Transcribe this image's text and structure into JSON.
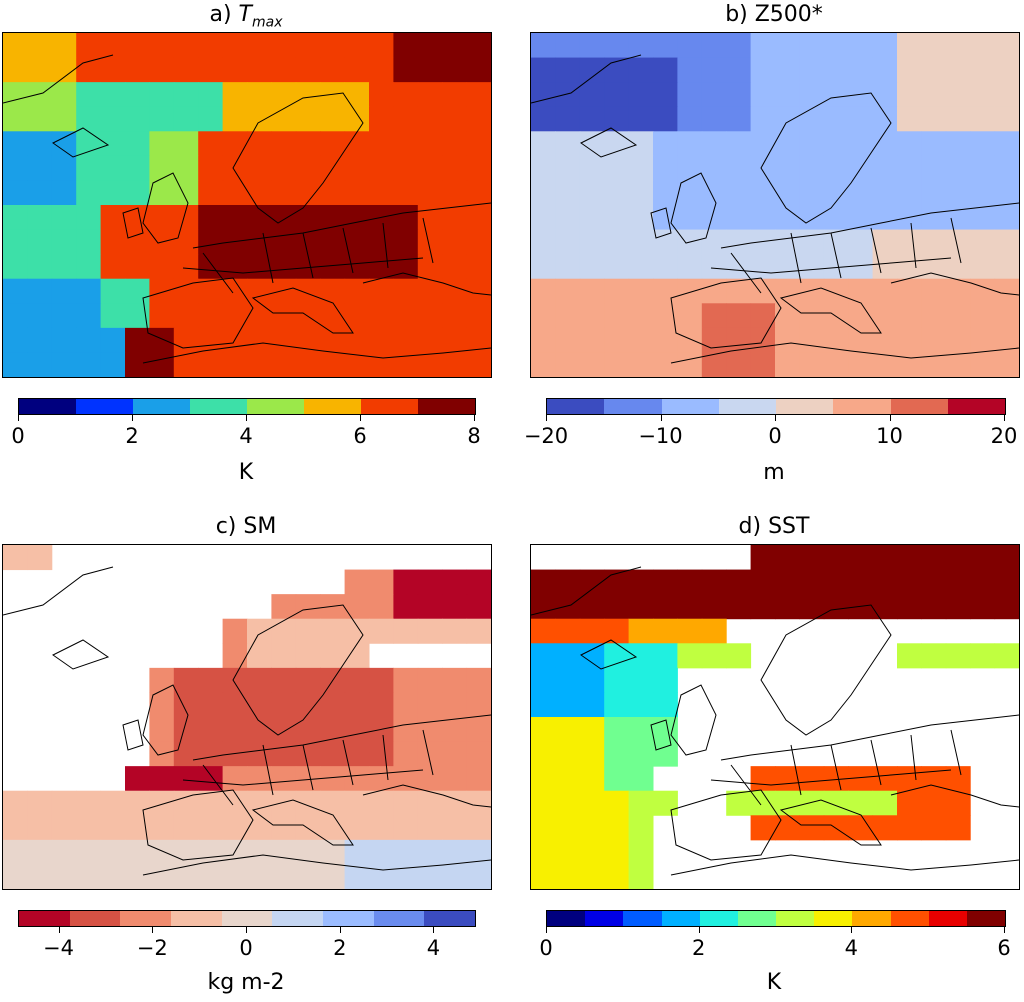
{
  "panels": {
    "a": {
      "title_prefix": "a) ",
      "title_var": "T",
      "title_sub": "max",
      "unit": "K",
      "ticks": [
        "0",
        "2",
        "4",
        "6",
        "8"
      ],
      "colors": [
        "#00007f",
        "#0033ff",
        "#1a9fe8",
        "#3de0a8",
        "#9be84a",
        "#f8b400",
        "#f23c00",
        "#800000"
      ]
    },
    "b": {
      "title": "b) Z500*",
      "unit": "m",
      "ticks": [
        "−20",
        "−10",
        "0",
        "10",
        "20"
      ],
      "colors": [
        "#3b4cc0",
        "#6788ee",
        "#9abbff",
        "#c9d7f0",
        "#edd1c2",
        "#f7a889",
        "#e26952",
        "#b40426"
      ]
    },
    "c": {
      "title": "c) SM",
      "unit": "kg m-2",
      "ticks": [
        "−4",
        "−2",
        "0",
        "2",
        "4"
      ],
      "colors": [
        "#b40426",
        "#d65244",
        "#f08b6e",
        "#f6bfa6",
        "#e8d6cc",
        "#c5d6f2",
        "#9bbcff",
        "#6a8cef",
        "#3b4cc0"
      ]
    },
    "d": {
      "title": "d) SST",
      "unit": "K",
      "ticks": [
        "0",
        "2",
        "4",
        "6"
      ],
      "colors": [
        "#00007f",
        "#0000e6",
        "#005cff",
        "#00b0ff",
        "#20f0e0",
        "#70ff90",
        "#c0ff40",
        "#f8f000",
        "#ffa800",
        "#ff5000",
        "#e80000",
        "#800000"
      ]
    }
  }
}
